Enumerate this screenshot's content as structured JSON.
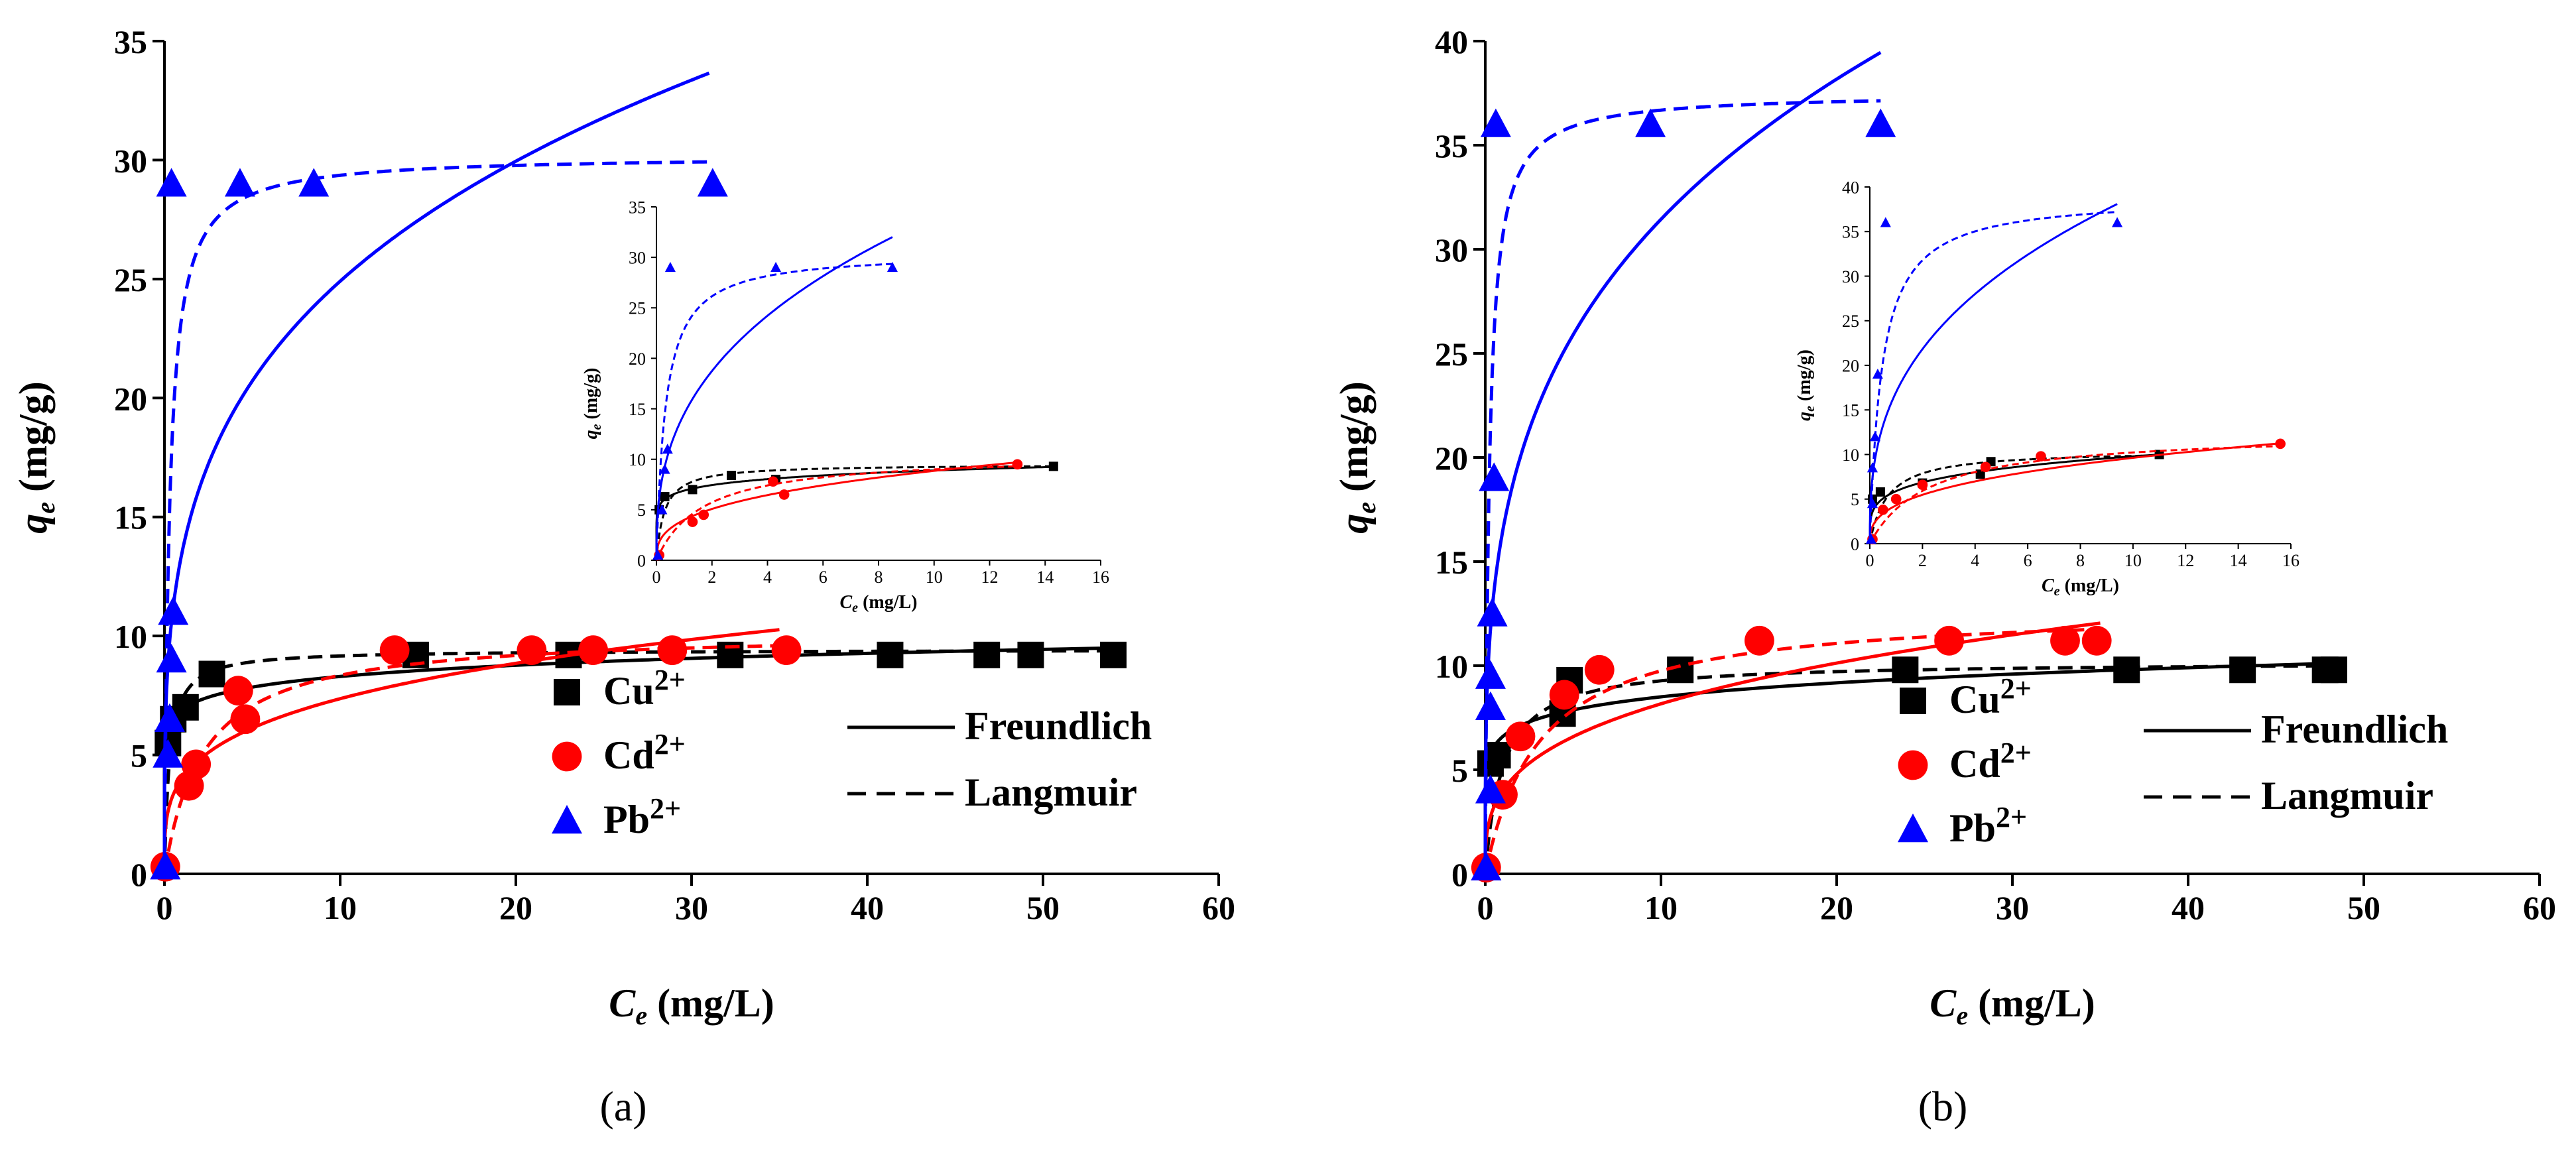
{
  "chart_data": [
    {
      "type": "scatter",
      "panel_label": "(a)",
      "xlabel": "C_e (mg/L)",
      "xlabel_main": "C",
      "xlabel_sub": "e",
      "xlabel_unit": " (mg/L)",
      "ylabel_main": "q",
      "ylabel_sub": "e",
      "ylabel_unit": " (mg/g)",
      "xlim": [
        0,
        60
      ],
      "ylim": [
        0,
        35
      ],
      "xticks": [
        0,
        10,
        20,
        30,
        40,
        50,
        60
      ],
      "yticks": [
        0,
        5,
        10,
        15,
        20,
        25,
        30,
        35
      ],
      "legend_species": [
        {
          "ion": "Cu",
          "charge": "2+",
          "marker": "square",
          "color": "#000000"
        },
        {
          "ion": "Cd",
          "charge": "2+",
          "marker": "circle",
          "color": "#ff0000"
        },
        {
          "ion": "Pb",
          "charge": "2+",
          "marker": "triangle",
          "color": "#0000ff"
        }
      ],
      "legend_models": [
        {
          "label": "Freundlich",
          "dash": "solid"
        },
        {
          "label": "Langmuir",
          "dash": "dashed"
        }
      ],
      "series": [
        {
          "name": "Cu2+",
          "color": "#000000",
          "marker": "square",
          "points": [
            [
              0.2,
              5.5
            ],
            [
              0.5,
              6.5
            ],
            [
              1.2,
              7.0
            ],
            [
              2.7,
              8.4
            ],
            [
              14.3,
              9.2
            ],
            [
              23.0,
              9.2
            ],
            [
              32.2,
              9.2
            ],
            [
              41.3,
              9.2
            ],
            [
              46.8,
              9.2
            ],
            [
              49.3,
              9.2
            ],
            [
              54.0,
              9.2
            ]
          ],
          "freundlich": {
            "KF": 6.9,
            "n": 0.08,
            "xmax": 54.0
          },
          "langmuir": {
            "qm": 9.42,
            "KL": 3.5,
            "xmax": 54.0
          }
        },
        {
          "name": "Cd2+",
          "color": "#ff0000",
          "marker": "circle",
          "points": [
            [
              0.05,
              0.3
            ],
            [
              1.4,
              3.7
            ],
            [
              1.8,
              4.6
            ],
            [
              4.2,
              7.7
            ],
            [
              4.6,
              6.5
            ],
            [
              13.1,
              9.4
            ],
            [
              20.9,
              9.4
            ],
            [
              24.4,
              9.4
            ],
            [
              28.9,
              9.4
            ],
            [
              35.4,
              9.4
            ]
          ],
          "freundlich": {
            "KF": 4.0,
            "n": 0.265,
            "xmax": 35.0
          },
          "langmuir": {
            "qm": 10.2,
            "KL": 0.45,
            "xmax": 35.0
          }
        },
        {
          "name": "Pb2+",
          "color": "#0000ff",
          "marker": "triangle",
          "points": [
            [
              0.05,
              0.3
            ],
            [
              0.2,
              5.0
            ],
            [
              0.3,
              6.5
            ],
            [
              0.4,
              9.0
            ],
            [
              0.5,
              11.0
            ],
            [
              0.4,
              29.0
            ],
            [
              4.3,
              29.0
            ],
            [
              8.5,
              29.0
            ],
            [
              31.2,
              29.0
            ]
          ],
          "freundlich": {
            "KF": 13.5,
            "n": 0.266,
            "xmax": 31.0
          },
          "langmuir": {
            "qm": 30.2,
            "KL": 3.5,
            "xmax": 31.0
          }
        }
      ],
      "inset": {
        "xlim": [
          0,
          16
        ],
        "ylim": [
          0,
          35
        ],
        "xticks": [
          0,
          2,
          4,
          6,
          8,
          10,
          12,
          14,
          16
        ],
        "yticks": [
          0,
          5,
          10,
          15,
          20,
          25,
          30,
          35
        ],
        "series": [
          {
            "name": "Cu2+",
            "color": "#000000",
            "marker": "square",
            "points": [
              [
                0.1,
                5.0
              ],
              [
                0.3,
                6.3
              ],
              [
                1.3,
                7.0
              ],
              [
                2.7,
                8.4
              ],
              [
                4.3,
                8.0
              ],
              [
                14.3,
                9.3
              ]
            ],
            "freundlich": {
              "KF": 6.9,
              "n": 0.11,
              "xmax": 14.3
            },
            "langmuir": {
              "qm": 9.5,
              "KL": 3.5,
              "xmax": 14.3
            }
          },
          {
            "name": "Cd2+",
            "color": "#ff0000",
            "marker": "circle",
            "points": [
              [
                0.1,
                0.5
              ],
              [
                1.3,
                3.8
              ],
              [
                1.7,
                4.5
              ],
              [
                4.2,
                7.8
              ],
              [
                4.6,
                6.5
              ],
              [
                13.0,
                9.5
              ]
            ],
            "freundlich": {
              "KF": 4.0,
              "n": 0.345,
              "xmax": 13.0
            },
            "langmuir": {
              "qm": 10.5,
              "KL": 0.6,
              "xmax": 13.0
            }
          },
          {
            "name": "Pb2+",
            "color": "#0000ff",
            "marker": "triangle",
            "points": [
              [
                0.05,
                0.5
              ],
              [
                0.2,
                5.0
              ],
              [
                0.3,
                9.0
              ],
              [
                0.4,
                11.0
              ],
              [
                0.5,
                29.0
              ],
              [
                4.3,
                29.0
              ],
              [
                8.5,
                29.0
              ]
            ],
            "freundlich": {
              "KF": 14.5,
              "n": 0.37,
              "xmax": 8.5
            },
            "langmuir": {
              "qm": 30.5,
              "KL": 3.0,
              "xmax": 8.5
            }
          }
        ]
      }
    },
    {
      "type": "scatter",
      "panel_label": "(b)",
      "xlabel": "C_e (mg/L)",
      "xlabel_main": "C",
      "xlabel_sub": "e",
      "xlabel_unit": " (mg/L)",
      "ylabel_main": "q",
      "ylabel_sub": "e",
      "ylabel_unit": " (mg/g)",
      "xlim": [
        0,
        60
      ],
      "ylim": [
        0,
        40
      ],
      "xticks": [
        0,
        10,
        20,
        30,
        40,
        50,
        60
      ],
      "yticks": [
        0,
        5,
        10,
        15,
        20,
        25,
        30,
        35,
        40
      ],
      "legend_species": [
        {
          "ion": "Cu",
          "charge": "2+",
          "marker": "square",
          "color": "#000000"
        },
        {
          "ion": "Cd",
          "charge": "2+",
          "marker": "circle",
          "color": "#ff0000"
        },
        {
          "ion": "Pb",
          "charge": "2+",
          "marker": "triangle",
          "color": "#0000ff"
        }
      ],
      "legend_models": [
        {
          "label": "Freundlich",
          "dash": "solid"
        },
        {
          "label": "Langmuir",
          "dash": "dashed"
        }
      ],
      "series": [
        {
          "name": "Cu2+",
          "color": "#000000",
          "marker": "square",
          "points": [
            [
              0.3,
              5.3
            ],
            [
              0.7,
              5.7
            ],
            [
              4.4,
              7.7
            ],
            [
              4.8,
              9.3
            ],
            [
              11.1,
              9.8
            ],
            [
              23.9,
              9.8
            ],
            [
              36.5,
              9.8
            ],
            [
              43.1,
              9.8
            ],
            [
              47.8,
              9.8
            ],
            [
              48.3,
              9.8
            ]
          ],
          "freundlich": {
            "KF": 6.6,
            "n": 0.11,
            "xmax": 48.0
          },
          "langmuir": {
            "qm": 10.2,
            "KL": 1.0,
            "xmax": 48.0
          }
        },
        {
          "name": "Cd2+",
          "color": "#ff0000",
          "marker": "circle",
          "points": [
            [
              0.05,
              0.3
            ],
            [
              1.0,
              3.8
            ],
            [
              2.0,
              6.6
            ],
            [
              4.5,
              8.6
            ],
            [
              6.5,
              9.8
            ],
            [
              15.6,
              11.2
            ],
            [
              26.4,
              11.2
            ],
            [
              33.0,
              11.2
            ],
            [
              34.8,
              11.2
            ]
          ],
          "freundlich": {
            "KF": 4.0,
            "n": 0.31,
            "xmax": 35.0
          },
          "langmuir": {
            "qm": 12.8,
            "KL": 0.32,
            "xmax": 35.0
          }
        },
        {
          "name": "Pb2+",
          "color": "#0000ff",
          "marker": "triangle",
          "points": [
            [
              0.05,
              0.3
            ],
            [
              0.3,
              4.0
            ],
            [
              0.3,
              8.0
            ],
            [
              0.3,
              9.5
            ],
            [
              0.4,
              12.5
            ],
            [
              0.5,
              19.0
            ],
            [
              0.6,
              36.0
            ],
            [
              9.4,
              36.0
            ],
            [
              22.5,
              36.0
            ]
          ],
          "freundlich": {
            "KF": 16.5,
            "n": 0.28,
            "xmax": 22.5
          },
          "langmuir": {
            "qm": 37.5,
            "KL": 4.5,
            "xmax": 22.5
          }
        }
      ],
      "inset": {
        "xlim": [
          0,
          16
        ],
        "ylim": [
          0,
          40
        ],
        "xticks": [
          0,
          2,
          4,
          6,
          8,
          10,
          12,
          14,
          16
        ],
        "yticks": [
          0,
          5,
          10,
          15,
          20,
          25,
          30,
          35,
          40
        ],
        "series": [
          {
            "name": "Cu2+",
            "color": "#000000",
            "marker": "square",
            "points": [
              [
                0.1,
                5.0
              ],
              [
                0.4,
                5.8
              ],
              [
                2.0,
                6.8
              ],
              [
                4.2,
                7.8
              ],
              [
                4.6,
                9.2
              ],
              [
                11.0,
                10.0
              ]
            ],
            "freundlich": {
              "KF": 5.9,
              "n": 0.22,
              "xmax": 11.0
            },
            "langmuir": {
              "qm": 10.5,
              "KL": 1.5,
              "xmax": 11.0
            }
          },
          {
            "name": "Cd2+",
            "color": "#ff0000",
            "marker": "circle",
            "points": [
              [
                0.1,
                0.5
              ],
              [
                0.5,
                3.8
              ],
              [
                1.0,
                5.0
              ],
              [
                2.0,
                6.6
              ],
              [
                4.4,
                8.6
              ],
              [
                6.5,
                9.8
              ],
              [
                15.6,
                11.2
              ]
            ],
            "freundlich": {
              "KF": 4.3,
              "n": 0.35,
              "xmax": 15.6
            },
            "langmuir": {
              "qm": 12.5,
              "KL": 0.45,
              "xmax": 15.6
            }
          },
          {
            "name": "Pb2+",
            "color": "#0000ff",
            "marker": "triangle",
            "points": [
              [
                0.05,
                0.5
              ],
              [
                0.1,
                4.5
              ],
              [
                0.1,
                8.5
              ],
              [
                0.2,
                12.0
              ],
              [
                0.3,
                19.0
              ],
              [
                0.6,
                36.0
              ],
              [
                9.4,
                36.0
              ]
            ],
            "freundlich": {
              "KF": 17.0,
              "n": 0.36,
              "xmax": 9.4
            },
            "langmuir": {
              "qm": 39.0,
              "KL": 2.2,
              "xmax": 9.4
            }
          }
        ]
      }
    }
  ]
}
